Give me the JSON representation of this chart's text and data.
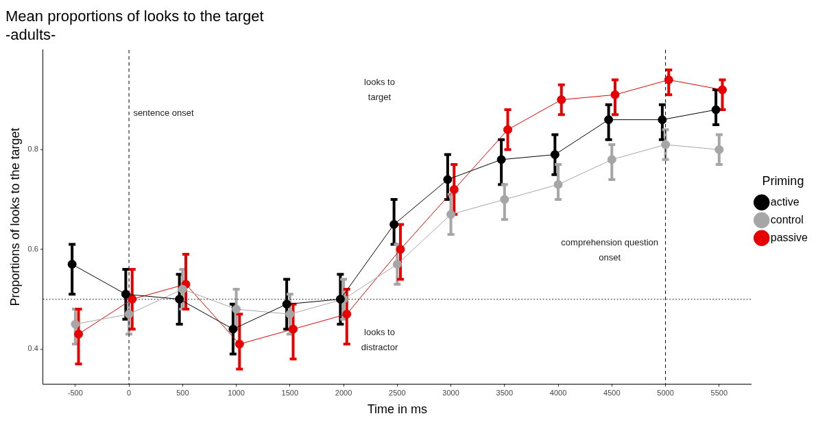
{
  "chart_data": {
    "type": "line",
    "title": "Mean proportions of looks to the target",
    "subtitle": "-adults-",
    "xlabel": "Time in ms",
    "ylabel": "Proportions of looks to the target",
    "legend_title": "Priming",
    "legend": "right",
    "marker": "circle",
    "grid": false,
    "xlim": [
      -800,
      5800
    ],
    "xticks": [
      -500,
      0,
      500,
      1000,
      1500,
      2000,
      2500,
      3000,
      3500,
      4000,
      4500,
      5000,
      5500
    ],
    "ylim": [
      0.33,
      1.0
    ],
    "yticks": [
      0.4,
      0.6,
      0.8
    ],
    "series": [
      {
        "name": "active",
        "color": "#000000",
        "x": [
          -530,
          -30,
          470,
          970,
          1470,
          1970,
          2470,
          2970,
          3470,
          3970,
          4470,
          4970,
          5470
        ],
        "values": [
          0.57,
          0.51,
          0.5,
          0.44,
          0.49,
          0.5,
          0.65,
          0.74,
          0.78,
          0.79,
          0.86,
          0.86,
          0.88
        ],
        "errors": [
          [
            0.51,
            0.61
          ],
          [
            0.46,
            0.56
          ],
          [
            0.45,
            0.55
          ],
          [
            0.39,
            0.49
          ],
          [
            0.44,
            0.54
          ],
          [
            0.45,
            0.55
          ],
          [
            0.61,
            0.7
          ],
          [
            0.7,
            0.79
          ],
          [
            0.73,
            0.82
          ],
          [
            0.75,
            0.83
          ],
          [
            0.82,
            0.89
          ],
          [
            0.82,
            0.89
          ],
          [
            0.85,
            0.92
          ]
        ]
      },
      {
        "name": "control",
        "color": "#a6a6a6",
        "x": [
          -500,
          0,
          500,
          1000,
          1500,
          2000,
          2500,
          3000,
          3500,
          4000,
          4500,
          5000,
          5500
        ],
        "values": [
          0.45,
          0.47,
          0.52,
          0.48,
          0.47,
          0.5,
          0.57,
          0.67,
          0.7,
          0.73,
          0.78,
          0.81,
          0.8
        ],
        "errors": [
          [
            0.41,
            0.48
          ],
          [
            0.43,
            0.51
          ],
          [
            0.48,
            0.56
          ],
          [
            0.44,
            0.52
          ],
          [
            0.43,
            0.51
          ],
          [
            0.46,
            0.54
          ],
          [
            0.53,
            0.61
          ],
          [
            0.63,
            0.71
          ],
          [
            0.66,
            0.73
          ],
          [
            0.7,
            0.77
          ],
          [
            0.74,
            0.81
          ],
          [
            0.78,
            0.84
          ],
          [
            0.77,
            0.83
          ]
        ]
      },
      {
        "name": "passive",
        "color": "#e60000",
        "x": [
          -470,
          30,
          530,
          1030,
          1530,
          2030,
          2530,
          3030,
          3530,
          4030,
          4530,
          5030,
          5530
        ],
        "values": [
          0.43,
          0.5,
          0.53,
          0.41,
          0.44,
          0.47,
          0.6,
          0.72,
          0.84,
          0.9,
          0.91,
          0.94,
          0.92
        ],
        "errors": [
          [
            0.37,
            0.48
          ],
          [
            0.44,
            0.56
          ],
          [
            0.48,
            0.59
          ],
          [
            0.36,
            0.47
          ],
          [
            0.38,
            0.49
          ],
          [
            0.41,
            0.52
          ],
          [
            0.54,
            0.65
          ],
          [
            0.67,
            0.77
          ],
          [
            0.8,
            0.88
          ],
          [
            0.87,
            0.93
          ],
          [
            0.87,
            0.94
          ],
          [
            0.91,
            0.96
          ],
          [
            0.88,
            0.94
          ]
        ]
      }
    ],
    "ref_lines": [
      {
        "axis": "x",
        "value": 0,
        "line_style": "dashed"
      },
      {
        "axis": "x",
        "value": 5000,
        "line_style": "dashed"
      },
      {
        "axis": "y",
        "value": 0.5,
        "line_style": "dotted"
      }
    ],
    "annotations": [
      "sentence onset",
      "looks to\ntarget",
      "comprehension question\nonset",
      "looks to\ndistractor"
    ]
  }
}
